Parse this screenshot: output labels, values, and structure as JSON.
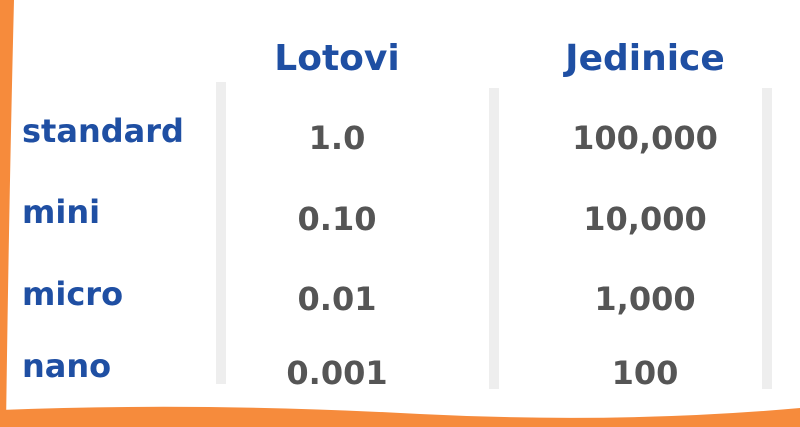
{
  "table": {
    "headers": [
      "Lotovi",
      "Jedinice"
    ],
    "rows": [
      {
        "label": "standard",
        "lots": "1.0",
        "units": "100,000"
      },
      {
        "label": "mini",
        "lots": "0.10",
        "units": "10,000"
      },
      {
        "label": "micro",
        "lots": "0.01",
        "units": "1,000"
      },
      {
        "label": "nano",
        "lots": "0.001",
        "units": "100"
      }
    ]
  },
  "colors": {
    "accent_blue": "#1f4fa3",
    "value_gray": "#555555",
    "divider_gray": "#eeeeee",
    "frame_orange": "#f68b3c"
  }
}
